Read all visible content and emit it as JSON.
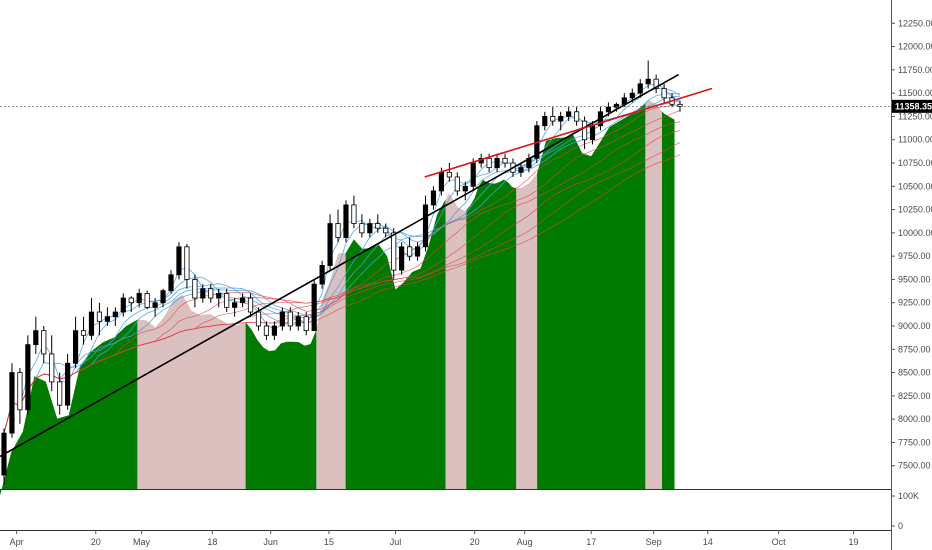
{
  "chart_data": {
    "type": "candlestick",
    "title": "",
    "xlabel": "",
    "ylabel": "",
    "ylim": [
      7250,
      12500
    ],
    "y_ticks": [
      7500,
      7750,
      8000,
      8250,
      8500,
      8750,
      9000,
      9250,
      9500,
      9750,
      10000,
      10250,
      10500,
      10750,
      11000,
      11250,
      11500,
      11750,
      12000,
      12250
    ],
    "y_tick_labels": [
      "7500.00",
      "7750.00",
      "8000.00",
      "8250.00",
      "8500.00",
      "8750.00",
      "9000.00",
      "9250.00",
      "9500.00",
      "9750.00",
      "10000.00",
      "10250.00",
      "10500.00",
      "10750.00",
      "11000.00",
      "11250.00",
      "11500.00",
      "11750.00",
      "12000.00",
      "12250.00"
    ],
    "x_range": [
      "2020-03-28",
      "2020-10-28"
    ],
    "x_ticks": [
      {
        "date": "2020-04-01",
        "label": "Apr"
      },
      {
        "date": "2020-04-20",
        "label": "20"
      },
      {
        "date": "2020-05-01",
        "label": "May"
      },
      {
        "date": "2020-05-18",
        "label": "18"
      },
      {
        "date": "2020-06-01",
        "label": "Jun"
      },
      {
        "date": "2020-06-15",
        "label": "15"
      },
      {
        "date": "2020-07-01",
        "label": "Jul"
      },
      {
        "date": "2020-07-20",
        "label": "20"
      },
      {
        "date": "2020-08-01",
        "label": "Aug"
      },
      {
        "date": "2020-08-17",
        "label": "17"
      },
      {
        "date": "2020-09-01",
        "label": "Sep"
      },
      {
        "date": "2020-09-14",
        "label": "14"
      },
      {
        "date": "2020-10-01",
        "label": "Oct"
      },
      {
        "date": "2020-10-19",
        "label": "19"
      }
    ],
    "last_price": {
      "value": 11358.35,
      "label": "11358.35",
      "color": "#000000"
    },
    "volume_pane": {
      "tick_labels": [
        "100K",
        "0"
      ]
    },
    "candles_ohlc": [
      [
        7400,
        7900,
        7300,
        7850
      ],
      [
        7850,
        8600,
        7800,
        8500
      ],
      [
        8500,
        8550,
        7950,
        8100
      ],
      [
        8100,
        8900,
        8050,
        8800
      ],
      [
        8800,
        9100,
        8700,
        8950
      ],
      [
        8950,
        9000,
        8600,
        8700
      ],
      [
        8700,
        8900,
        8300,
        8400
      ],
      [
        8400,
        8500,
        8050,
        8150
      ],
      [
        8150,
        8700,
        8100,
        8600
      ],
      [
        8600,
        9100,
        8550,
        8950
      ],
      [
        8950,
        9100,
        8800,
        8900
      ],
      [
        8900,
        9300,
        8850,
        9150
      ],
      [
        9150,
        9250,
        8900,
        9050
      ],
      [
        9050,
        9200,
        9000,
        9100
      ],
      [
        9100,
        9200,
        9000,
        9150
      ],
      [
        9150,
        9350,
        9100,
        9300
      ],
      [
        9300,
        9320,
        9150,
        9250
      ],
      [
        9250,
        9400,
        9200,
        9350
      ],
      [
        9350,
        9380,
        9180,
        9200
      ],
      [
        9200,
        9300,
        9100,
        9250
      ],
      [
        9250,
        9400,
        9200,
        9380
      ],
      [
        9380,
        9600,
        9350,
        9550
      ],
      [
        9550,
        9900,
        9500,
        9850
      ],
      [
        9850,
        9880,
        9400,
        9500
      ],
      [
        9500,
        9550,
        9200,
        9300
      ],
      [
        9300,
        9450,
        9250,
        9400
      ],
      [
        9400,
        9450,
        9250,
        9300
      ],
      [
        9300,
        9400,
        9200,
        9350
      ],
      [
        9350,
        9400,
        9150,
        9200
      ],
      [
        9200,
        9300,
        9100,
        9250
      ],
      [
        9250,
        9350,
        9200,
        9300
      ],
      [
        9300,
        9350,
        9100,
        9150
      ],
      [
        9150,
        9200,
        8950,
        9000
      ],
      [
        9000,
        9050,
        8850,
        8900
      ],
      [
        8900,
        9050,
        8850,
        9000
      ],
      [
        9000,
        9200,
        8950,
        9150
      ],
      [
        9150,
        9200,
        8950,
        9000
      ],
      [
        9000,
        9150,
        8950,
        9100
      ],
      [
        9100,
        9150,
        8900,
        8950
      ],
      [
        8950,
        9500,
        8950,
        9450
      ],
      [
        9450,
        9700,
        9400,
        9650
      ],
      [
        9650,
        10200,
        9600,
        10100
      ],
      [
        10100,
        10250,
        9900,
        9950
      ],
      [
        9950,
        10350,
        9900,
        10300
      ],
      [
        10300,
        10400,
        10050,
        10100
      ],
      [
        10100,
        10200,
        9950,
        10000
      ],
      [
        10000,
        10150,
        9950,
        10100
      ],
      [
        10100,
        10200,
        10000,
        10050
      ],
      [
        10050,
        10100,
        9950,
        10000
      ],
      [
        10000,
        10050,
        9500,
        9600
      ],
      [
        9600,
        9900,
        9550,
        9850
      ],
      [
        9850,
        9950,
        9700,
        9750
      ],
      [
        9750,
        9900,
        9700,
        9850
      ],
      [
        9850,
        10400,
        9800,
        10300
      ],
      [
        10300,
        10500,
        10250,
        10450
      ],
      [
        10450,
        10700,
        10400,
        10650
      ],
      [
        10650,
        10750,
        10550,
        10600
      ],
      [
        10600,
        10650,
        10400,
        10450
      ],
      [
        10450,
        10550,
        10350,
        10500
      ],
      [
        10500,
        10800,
        10450,
        10750
      ],
      [
        10750,
        10850,
        10700,
        10800
      ],
      [
        10800,
        10850,
        10650,
        10700
      ],
      [
        10700,
        10850,
        10650,
        10800
      ],
      [
        10800,
        10850,
        10700,
        10750
      ],
      [
        10750,
        10800,
        10600,
        10650
      ],
      [
        10650,
        10750,
        10600,
        10700
      ],
      [
        10700,
        10850,
        10650,
        10800
      ],
      [
        10800,
        11200,
        10750,
        11150
      ],
      [
        11150,
        11300,
        11100,
        11250
      ],
      [
        11250,
        11350,
        11150,
        11200
      ],
      [
        11200,
        11300,
        11100,
        11250
      ],
      [
        11250,
        11350,
        11200,
        11300
      ],
      [
        11300,
        11350,
        11150,
        11200
      ],
      [
        11200,
        11250,
        10900,
        11000
      ],
      [
        11000,
        11200,
        10950,
        11150
      ],
      [
        11150,
        11350,
        11100,
        11300
      ],
      [
        11300,
        11400,
        11250,
        11350
      ],
      [
        11350,
        11400,
        11300,
        11380
      ],
      [
        11380,
        11500,
        11350,
        11450
      ],
      [
        11450,
        11550,
        11400,
        11500
      ],
      [
        11500,
        11650,
        11450,
        11600
      ],
      [
        11600,
        11850,
        11550,
        11650
      ],
      [
        11650,
        11700,
        11500,
        11550
      ],
      [
        11550,
        11600,
        11400,
        11450
      ],
      [
        11450,
        11500,
        11350,
        11380
      ],
      [
        11380,
        11420,
        11300,
        11358
      ]
    ],
    "shaded_regions": [
      {
        "start": "2020-03-28",
        "end": "2020-04-30",
        "color": "#007a00"
      },
      {
        "start": "2020-04-30",
        "end": "2020-05-26",
        "color": "#dbc0c0"
      },
      {
        "start": "2020-05-26",
        "end": "2020-06-12",
        "color": "#007a00"
      },
      {
        "start": "2020-06-12",
        "end": "2020-06-19",
        "color": "#dbc0c0"
      },
      {
        "start": "2020-06-19",
        "end": "2020-07-13",
        "color": "#007a00"
      },
      {
        "start": "2020-07-13",
        "end": "2020-07-18",
        "color": "#dbc0c0"
      },
      {
        "start": "2020-07-18",
        "end": "2020-07-30",
        "color": "#007a00"
      },
      {
        "start": "2020-07-30",
        "end": "2020-08-04",
        "color": "#dbc0c0"
      },
      {
        "start": "2020-08-04",
        "end": "2020-08-30",
        "color": "#007a00"
      },
      {
        "start": "2020-08-30",
        "end": "2020-09-03",
        "color": "#dbc0c0"
      },
      {
        "start": "2020-09-03",
        "end": "2020-09-06",
        "color": "#007a00"
      }
    ],
    "trendlines": [
      {
        "from": [
          "2020-03-28",
          7600
        ],
        "to": [
          "2020-09-07",
          11700
        ],
        "color": "#000000"
      },
      {
        "from": [
          "2020-07-08",
          10600
        ],
        "to": [
          "2020-09-15",
          11550
        ],
        "color": "#dd1111"
      }
    ],
    "colors": {
      "up": "#000000",
      "down": "#ffffff",
      "band_green": "#007a00",
      "band_pink": "#dbc0c0",
      "ma_blue": "#4aa0e0",
      "ma_red": "#e04040"
    }
  }
}
